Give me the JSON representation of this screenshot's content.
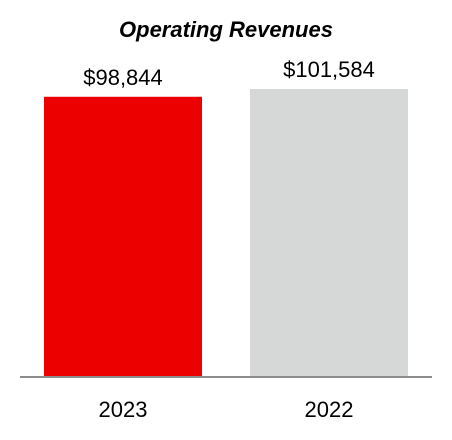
{
  "chart_data": {
    "type": "bar",
    "title": "Operating Revenues",
    "xlabel": "",
    "ylabel": "",
    "categories": [
      "2023",
      "2022"
    ],
    "values": [
      98844,
      101584
    ],
    "value_labels": [
      "$98,844",
      "$101,584"
    ],
    "colors": [
      "#ec0000",
      "#d6d7d7"
    ],
    "axis_color": "#8c8c8c",
    "ylim": [
      0,
      101584
    ],
    "grid": false,
    "legend": "none"
  }
}
